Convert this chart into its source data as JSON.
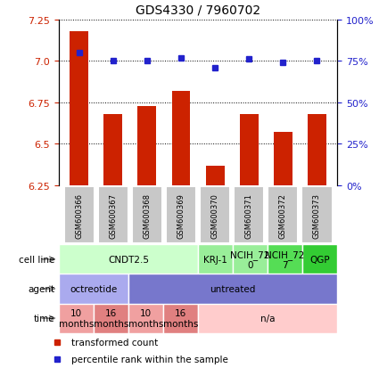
{
  "title": "GDS4330 / 7960702",
  "samples": [
    "GSM600366",
    "GSM600367",
    "GSM600368",
    "GSM600369",
    "GSM600370",
    "GSM600371",
    "GSM600372",
    "GSM600373"
  ],
  "bar_values": [
    7.18,
    6.68,
    6.73,
    6.82,
    6.37,
    6.68,
    6.57,
    6.68
  ],
  "dot_values": [
    80,
    75,
    75,
    77,
    71,
    76,
    74,
    75
  ],
  "ylim_left": [
    6.25,
    7.25
  ],
  "ylim_right": [
    0,
    100
  ],
  "yticks_left": [
    6.25,
    6.5,
    6.75,
    7.0,
    7.25
  ],
  "yticks_right": [
    0,
    25,
    50,
    75,
    100
  ],
  "ytick_labels_right": [
    "0%",
    "25%",
    "50%",
    "75%",
    "100%"
  ],
  "bar_color": "#cc2200",
  "dot_color": "#2222cc",
  "grid_y": [
    6.25,
    6.5,
    6.75,
    7.0,
    7.25
  ],
  "cell_line_groups": [
    {
      "label": "CNDT2.5",
      "start": 0,
      "end": 4,
      "color": "#ccffcc"
    },
    {
      "label": "KRJ-1",
      "start": 4,
      "end": 5,
      "color": "#99ee99"
    },
    {
      "label": "NCIH_72\n0",
      "start": 5,
      "end": 6,
      "color": "#99ee99"
    },
    {
      "label": "NCIH_72\n7",
      "start": 6,
      "end": 7,
      "color": "#55dd55"
    },
    {
      "label": "QGP",
      "start": 7,
      "end": 8,
      "color": "#33cc33"
    }
  ],
  "agent_groups": [
    {
      "label": "octreotide",
      "start": 0,
      "end": 2,
      "color": "#aaaaee"
    },
    {
      "label": "untreated",
      "start": 2,
      "end": 8,
      "color": "#7777cc"
    }
  ],
  "time_groups": [
    {
      "label": "10\nmonths",
      "start": 0,
      "end": 1,
      "color": "#f0a0a0"
    },
    {
      "label": "16\nmonths",
      "start": 1,
      "end": 2,
      "color": "#e08080"
    },
    {
      "label": "10\nmonths",
      "start": 2,
      "end": 3,
      "color": "#f0a0a0"
    },
    {
      "label": "16\nmonths",
      "start": 3,
      "end": 4,
      "color": "#e08080"
    },
    {
      "label": "n/a",
      "start": 4,
      "end": 8,
      "color": "#ffcccc"
    }
  ],
  "row_labels": [
    "cell line",
    "agent",
    "time"
  ],
  "sample_box_color": "#c8c8c8",
  "legend_items": [
    {
      "label": "transformed count",
      "color": "#cc2200"
    },
    {
      "label": "percentile rank within the sample",
      "color": "#2222cc"
    }
  ]
}
